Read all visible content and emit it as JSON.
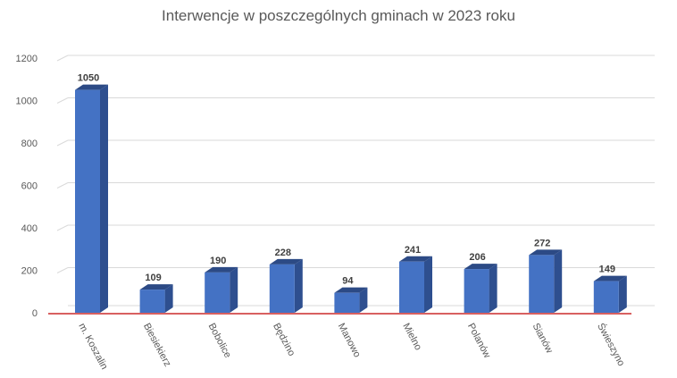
{
  "chart_data": {
    "type": "bar",
    "title": "Interwencje w poszczególnych gminach w 2023 roku",
    "xlabel": "",
    "ylabel": "",
    "categories": [
      "m. Koszalin",
      "Biesiekierz",
      "Bobolice",
      "Będzino",
      "Manowo",
      "Mielno",
      "Polanów",
      "Sianów",
      "Świeszyno"
    ],
    "values": [
      1050,
      109,
      190,
      228,
      94,
      241,
      206,
      272,
      149
    ],
    "data_labels": [
      "1050",
      "109",
      "190",
      "228",
      "94",
      "241",
      "206",
      "272",
      "149"
    ],
    "yticks": [
      "0",
      "200",
      "400",
      "600",
      "800",
      "1000",
      "1200"
    ],
    "ylim": [
      0,
      1200
    ],
    "grid": true,
    "legend": "none",
    "colors": {
      "bar_front": "#4472C4",
      "bar_side": "#2E4F8F",
      "bar_top": "#2C4A85",
      "grid": "#D9D9D9",
      "axis_line": "#C00000",
      "text": "#595959"
    }
  }
}
